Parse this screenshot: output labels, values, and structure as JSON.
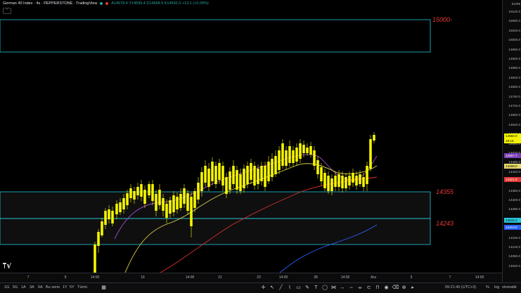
{
  "legend": {
    "symbol": "German 40 Index · 4s · PEPPERSTONE · TradingView",
    "ohlc": "A14578.4 Y14599.4 D14568.9 K14592.0 +13.1 (+0.09%)",
    "collapse_icon": "chevron-up"
  },
  "zones": [
    {
      "label": "15000-",
      "color": "#e53935"
    },
    {
      "label": "14355",
      "color": "#e53935"
    },
    {
      "label": "14243",
      "color": "#e53935"
    }
  ],
  "price_axis": {
    "currency": "EUR▾",
    "ticks": [
      "15120.0",
      "15080.0",
      "15040.0",
      "15000.0",
      "14960.0",
      "14920.0",
      "14880.0",
      "14840.0",
      "14800.0",
      "14760.0",
      "14720.0",
      "14680.0",
      "14640.0",
      "14600.0",
      "14560.0",
      "14520.0",
      "14480.0",
      "14440.0",
      "14400.0",
      "14360.0",
      "14320.0",
      "14280.0",
      "14240.0",
      "14200.0",
      "14160.0",
      "14120.0",
      "14080.0",
      "14040.0"
    ],
    "tags": [
      {
        "text": "14592.0",
        "sub": "18:19",
        "bg": "#f5f500",
        "fg": "#000"
      },
      {
        "text": "14507.7",
        "bg": "#7b3fb5",
        "fg": "#fff"
      },
      {
        "text": "14468.0",
        "bg": "#e6d96a",
        "fg": "#000"
      },
      {
        "text": "14421.9",
        "bg": "#e53935",
        "fg": "#fff"
      },
      {
        "text": "14244.2",
        "bg": "#26c6da",
        "fg": "#000"
      },
      {
        "text": "14213.0",
        "bg": "#2962ff",
        "fg": "#fff"
      }
    ]
  },
  "time_axis": {
    "labels": [
      "7",
      "9",
      "14:00",
      "16",
      "14:00",
      "21",
      "23",
      "14:00",
      "28",
      "14:00",
      "Ara",
      "5",
      "7",
      "14:00"
    ]
  },
  "bottom_bar": {
    "timeframes": [
      "1G",
      "5G",
      "1A",
      "3A",
      "6A",
      "Bu sene",
      "1Y",
      "5Y",
      "Tümü"
    ],
    "clock": "09:21:40 (UTC+3)",
    "percent": "%",
    "log": "log",
    "auto": "otomatik"
  },
  "colors": {
    "candle": "#f5f500",
    "ma_purple": "#9c4dcc",
    "ma_yellow": "#d9d04a",
    "ma_red": "#d32f2f",
    "ma_blue": "#2962ff",
    "zone_border": "#26c6da"
  }
}
